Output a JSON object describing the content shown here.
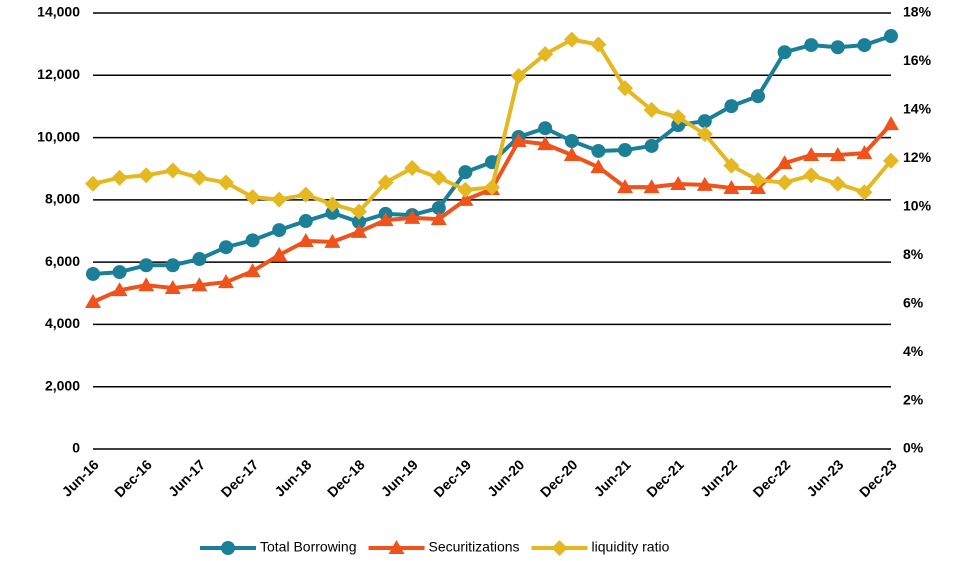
{
  "chart_data": {
    "type": "line",
    "categories": [
      "Jun-16",
      null,
      "Dec-16",
      null,
      "Jun-17",
      null,
      "Dec-17",
      null,
      "Jun-18",
      null,
      "Dec-18",
      null,
      "Jun-19",
      null,
      "Dec-19",
      null,
      "Jun-20",
      null,
      "Dec-20",
      null,
      "Jun-21",
      null,
      "Dec-21",
      null,
      "Jun-22",
      null,
      "Dec-22",
      null,
      "Jun-23",
      null,
      "Dec-23"
    ],
    "series": [
      {
        "name": "Total Borrowing",
        "color": "#1b7f97",
        "marker": "circle",
        "values": [
          5620,
          5680,
          5900,
          5900,
          6100,
          6480,
          6700,
          7030,
          7320,
          7580,
          7290,
          7550,
          7510,
          7740,
          8890,
          9210,
          10020,
          10300,
          9890,
          9570,
          9600,
          9730,
          10400,
          10530,
          11010,
          11330,
          12740,
          12970,
          12900,
          12970,
          13260
        ]
      },
      {
        "name": "Securitizations",
        "color": "#f0521c",
        "marker": "triangle",
        "values": [
          4720,
          5100,
          5260,
          5170,
          5260,
          5360,
          5710,
          6230,
          6680,
          6650,
          6970,
          7350,
          7420,
          7380,
          8000,
          8350,
          9890,
          9790,
          9440,
          9050,
          8410,
          8410,
          8510,
          8480,
          8380,
          8380,
          9180,
          9440,
          9440,
          9500,
          10430
        ]
      },
      {
        "name": "liquidity ratio",
        "color": "#e5b721",
        "marker": "diamond",
        "axis": "y2",
        "values": [
          10.95,
          11.2,
          11.3,
          11.5,
          11.2,
          11.0,
          10.4,
          10.3,
          10.5,
          10.1,
          9.8,
          11.0,
          11.6,
          11.2,
          10.7,
          10.8,
          15.4,
          16.3,
          16.9,
          16.7,
          14.9,
          14.0,
          13.7,
          13.0,
          11.7,
          11.1,
          11.0,
          11.3,
          10.95,
          10.6,
          11.9
        ]
      }
    ],
    "ylim": [
      0,
      14000
    ],
    "yticks": [
      0,
      {
        "value": 2000,
        "label": "2,000"
      },
      {
        "value": 4000,
        "label": "4,000"
      },
      {
        "value": 6000,
        "label": "6,000"
      },
      {
        "value": 8000,
        "label": "8,000"
      },
      {
        "value": 10000,
        "label": "10,000"
      },
      {
        "value": 12000,
        "label": "12,000"
      },
      {
        "value": 14000,
        "label": "14,000"
      }
    ],
    "y2lim": [
      0,
      18
    ],
    "y2ticks": [
      {
        "value": 0,
        "label": "0%"
      },
      {
        "value": 2,
        "label": "2%"
      },
      {
        "value": 4,
        "label": "4%"
      },
      {
        "value": 6,
        "label": "6%"
      },
      {
        "value": 8,
        "label": "8%"
      },
      {
        "value": 10,
        "label": "10%"
      },
      {
        "value": 12,
        "label": "12%"
      },
      {
        "value": 14,
        "label": "14%"
      },
      {
        "value": 16,
        "label": "16%"
      },
      {
        "value": 18,
        "label": "18%"
      }
    ],
    "grid": true,
    "legend": "bottom"
  }
}
